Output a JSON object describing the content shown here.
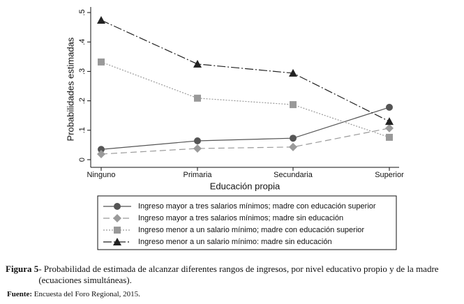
{
  "chart_data": {
    "type": "line",
    "categories": [
      "Ninguno",
      "Primaria",
      "Secundaria",
      "Superior"
    ],
    "x_label": "Educación propia",
    "y_label": "Probabilidades estimadas",
    "ylim": [
      0,
      0.5
    ],
    "yticks": [
      0,
      {
        "value": 0.1,
        "label": ".1"
      },
      {
        "value": 0.2,
        "label": ".2"
      },
      {
        "value": 0.3,
        "label": ".3"
      },
      {
        "value": 0.4,
        "label": ".4"
      },
      {
        "value": 0.5,
        "label": ".5"
      }
    ],
    "series": [
      {
        "name": "Ingreso mayor a tres salarios mínimos; madre con educación superior",
        "color": "#555555",
        "marker": "circle",
        "dash": "none",
        "values": [
          0.035,
          0.064,
          0.073,
          0.178
        ]
      },
      {
        "name": "Ingreso mayor a tres salarios mínimos; madre sin educación",
        "color": "#9a9a9a",
        "marker": "diamond",
        "dash": "9 5",
        "values": [
          0.019,
          0.038,
          0.043,
          0.107
        ]
      },
      {
        "name": "Ingreso menor a un salario mínimo; madre con educación superior",
        "color": "#999999",
        "marker": "square",
        "dash": "2 2",
        "values": [
          0.332,
          0.209,
          0.187,
          0.076
        ]
      },
      {
        "name": "Ingreso menor a un salario mínimo: madre sin educación",
        "color": "#222222",
        "marker": "triangle",
        "dash": "12 3 2 3",
        "values": [
          0.474,
          0.325,
          0.294,
          0.13
        ]
      }
    ],
    "caption": {
      "label": "Figura 5",
      "text": " - Probabilidad de estimada de alcanzar diferentes rangos de ingresos, por nivel  educativo propio y de la madre (ecuaciones simultáneas)."
    },
    "source": {
      "label": "Fuente:",
      "text": " Encuesta del Foro Regional, 2015."
    }
  }
}
